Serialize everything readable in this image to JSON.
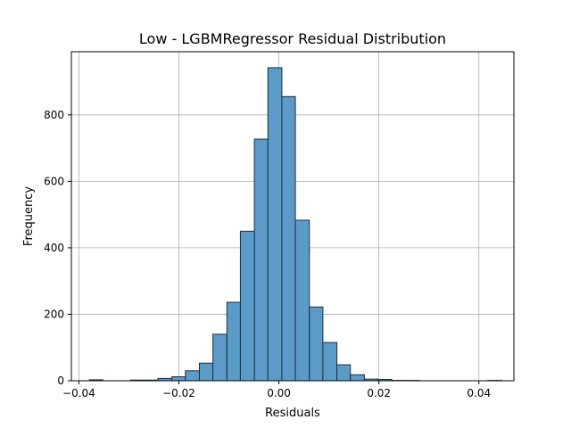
{
  "chart_data": {
    "type": "bar",
    "title": "Low - LGBMRegressor Residual Distribution",
    "xlabel": "Residuals",
    "ylabel": "Frequency",
    "xlim": [
      -0.0415,
      0.047
    ],
    "ylim": [
      0,
      990
    ],
    "xticks": [
      -0.04,
      -0.02,
      0.0,
      0.02,
      0.04
    ],
    "xtick_labels": [
      "−0.04",
      "−0.02",
      "0.00",
      "0.02",
      "0.04"
    ],
    "yticks": [
      0,
      200,
      400,
      600,
      800
    ],
    "ytick_labels": [
      "0",
      "200",
      "400",
      "600",
      "800"
    ],
    "grid": true,
    "bar_color": "#5b9bc8",
    "bar_edge_color": "#1f2f3f",
    "bins": [
      {
        "x0": -0.0379,
        "x1": -0.0352,
        "count": 3
      },
      {
        "x0": -0.0352,
        "x1": -0.0324,
        "count": 0
      },
      {
        "x0": -0.0324,
        "x1": -0.0297,
        "count": 0
      },
      {
        "x0": -0.0297,
        "x1": -0.0269,
        "count": 2
      },
      {
        "x0": -0.0269,
        "x1": -0.0242,
        "count": 2
      },
      {
        "x0": -0.0242,
        "x1": -0.0214,
        "count": 7
      },
      {
        "x0": -0.0214,
        "x1": -0.0187,
        "count": 12
      },
      {
        "x0": -0.0187,
        "x1": -0.0159,
        "count": 30
      },
      {
        "x0": -0.0159,
        "x1": -0.0132,
        "count": 53
      },
      {
        "x0": -0.0132,
        "x1": -0.0104,
        "count": 140
      },
      {
        "x0": -0.0104,
        "x1": -0.0077,
        "count": 236
      },
      {
        "x0": -0.0077,
        "x1": -0.0049,
        "count": 450
      },
      {
        "x0": -0.0049,
        "x1": -0.0022,
        "count": 727
      },
      {
        "x0": -0.0022,
        "x1": 0.0006,
        "count": 942
      },
      {
        "x0": 0.0006,
        "x1": 0.0033,
        "count": 855
      },
      {
        "x0": 0.0033,
        "x1": 0.0061,
        "count": 483
      },
      {
        "x0": 0.0061,
        "x1": 0.0088,
        "count": 222
      },
      {
        "x0": 0.0088,
        "x1": 0.0116,
        "count": 115
      },
      {
        "x0": 0.0116,
        "x1": 0.0143,
        "count": 48
      },
      {
        "x0": 0.0143,
        "x1": 0.0171,
        "count": 18
      },
      {
        "x0": 0.0171,
        "x1": 0.0198,
        "count": 5
      },
      {
        "x0": 0.0198,
        "x1": 0.0226,
        "count": 4
      },
      {
        "x0": 0.0226,
        "x1": 0.0253,
        "count": 1
      },
      {
        "x0": 0.0253,
        "x1": 0.0281,
        "count": 1
      },
      {
        "x0": 0.0281,
        "x1": 0.0308,
        "count": 0
      },
      {
        "x0": 0.0308,
        "x1": 0.0336,
        "count": 0
      },
      {
        "x0": 0.0336,
        "x1": 0.0363,
        "count": 0
      },
      {
        "x0": 0.0363,
        "x1": 0.0391,
        "count": 0
      },
      {
        "x0": 0.0391,
        "x1": 0.0418,
        "count": 0
      },
      {
        "x0": 0.0418,
        "x1": 0.0446,
        "count": 1
      }
    ]
  }
}
